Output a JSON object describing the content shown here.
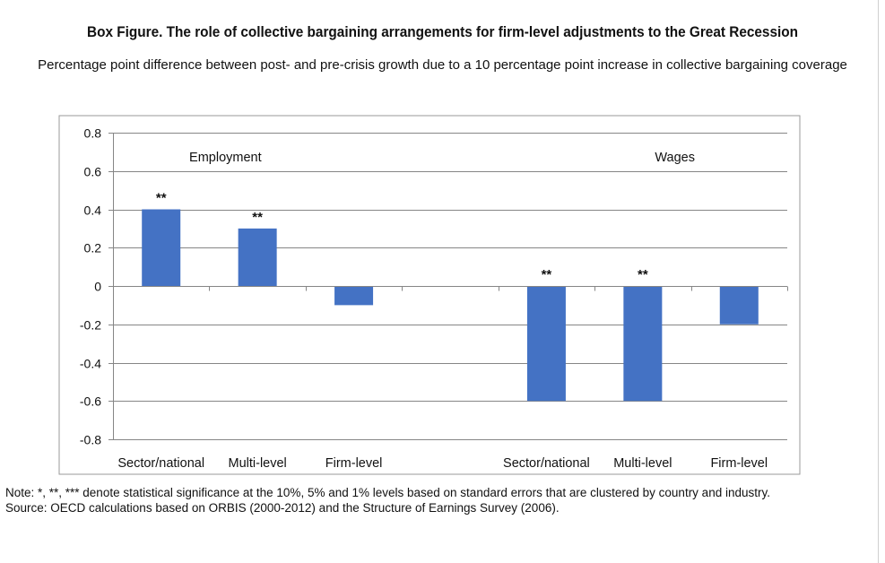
{
  "title": "Box Figure. The role of collective bargaining arrangements for firm-level adjustments to the Great Recession",
  "subtitle": "Percentage point difference between post- and  pre-crisis growth due to a 10 percentage point  increase in collective bargaining coverage",
  "note": "Note: *, **, *** denote statistical significance at the 10%, 5% and 1% levels based on standard errors that are clustered by country and industry.",
  "source": "Source: OECD calculations based on ORBIS (2000-2012) and the Structure of Earnings Survey (2006).",
  "colors": {
    "bar": "#4472c4",
    "axis": "#868686",
    "grid": "#868686"
  },
  "chart_data": {
    "type": "bar",
    "title": "",
    "xlabel": "",
    "ylabel": "",
    "ylim": [
      -0.8,
      0.8
    ],
    "yticks": [
      0.8,
      0.6,
      0.4,
      0.2,
      0,
      -0.2,
      -0.4,
      -0.6,
      -0.8
    ],
    "ytick_labels": [
      "0.8",
      "0.6",
      "0.4",
      "0.2",
      "0",
      "-0.2",
      "-0.4",
      "-0.6",
      "-0.8"
    ],
    "grid": true,
    "legend": "none",
    "groups": [
      "Employment",
      "",
      "Wages"
    ],
    "categories": [
      "Sector/national",
      "Multi-level",
      "Firm-level",
      "",
      "Sector/national",
      "Multi-level",
      "Firm-level"
    ],
    "values": [
      0.4,
      0.3,
      -0.1,
      null,
      -0.6,
      -0.6,
      -0.2
    ],
    "significance": [
      "**",
      "**",
      "",
      "",
      "**",
      "**",
      ""
    ]
  }
}
